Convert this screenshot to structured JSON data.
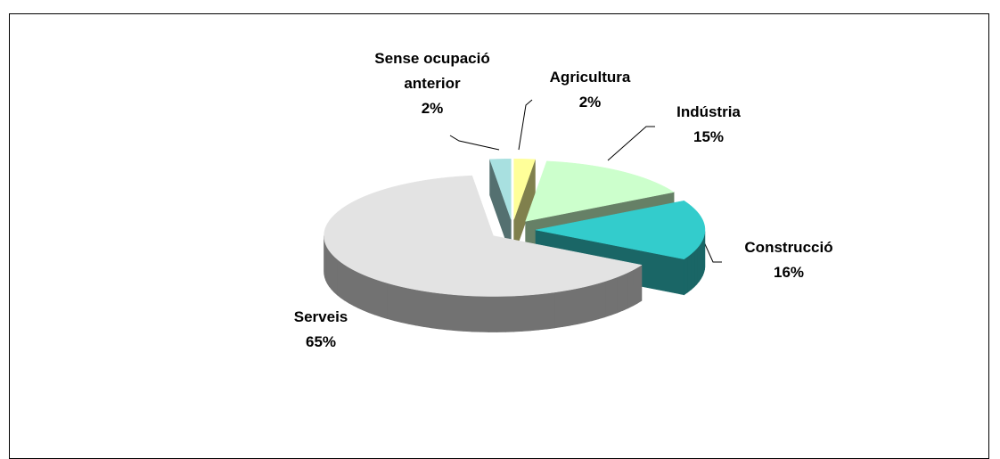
{
  "chart_data": {
    "type": "pie",
    "categories": [
      "Agricultura",
      "Indústria",
      "Construcció",
      "Serveis",
      "Sense ocupació anterior"
    ],
    "values": [
      2,
      15,
      16,
      65,
      2
    ],
    "value_labels": [
      "2%",
      "15%",
      "16%",
      "65%",
      "2%"
    ],
    "colors": [
      "#ffff99",
      "#ccffcc",
      "#33cccc",
      "#e3e3e3",
      "#a8e0e0"
    ]
  }
}
